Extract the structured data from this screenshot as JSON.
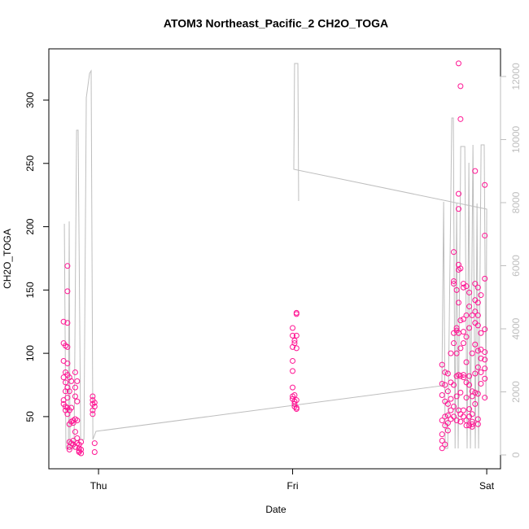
{
  "chart_data": {
    "type": "scatter",
    "title": "ATOM3 Northeast_Pacific_2 CH2O_TOGA",
    "x_label": "Date",
    "y_label": "CH2O_TOGA",
    "xlim": [
      -0.256,
      2.071
    ],
    "xticks": [
      {
        "value": 0,
        "label": "Thu"
      },
      {
        "value": 1,
        "label": "Fri"
      },
      {
        "value": 2,
        "label": "Sat"
      }
    ],
    "ylim": [
      8.8,
      340.5
    ],
    "yticks": [
      50,
      100,
      150,
      200,
      250,
      300
    ],
    "y2lim": [
      -439,
      12877
    ],
    "y2ticks": [
      0,
      2000,
      4000,
      6000,
      8000,
      10000,
      12000
    ],
    "y2_color": "#bebebe",
    "series": [
      {
        "type": "scatter",
        "color": "#ff1493",
        "x": [
          -0.18,
          -0.18,
          -0.18,
          -0.18,
          -0.18,
          -0.18,
          -0.17,
          -0.17,
          -0.17,
          -0.17,
          -0.17,
          -0.17,
          -0.16,
          -0.16,
          -0.16,
          -0.16,
          -0.16,
          -0.16,
          -0.16,
          -0.16,
          -0.16,
          -0.16,
          -0.15,
          -0.15,
          -0.15,
          -0.15,
          -0.15,
          -0.15,
          -0.15,
          -0.14,
          -0.14,
          -0.14,
          -0.14,
          -0.13,
          -0.13,
          -0.13,
          -0.13,
          -0.12,
          -0.12,
          -0.12,
          -0.12,
          -0.12,
          -0.12,
          -0.11,
          -0.11,
          -0.11,
          -0.11,
          -0.11,
          -0.1,
          -0.1,
          -0.1,
          -0.1,
          -0.09,
          -0.09,
          -0.09,
          -0.03,
          -0.03,
          -0.03,
          -0.03,
          -0.03,
          -0.02,
          -0.02,
          -0.02,
          -0.02,
          1.0,
          1.0,
          1.0,
          1.0,
          1.0,
          1.0,
          1.0,
          1.0,
          1.01,
          1.01,
          1.01,
          1.01,
          1.01,
          1.01,
          1.02,
          1.02,
          1.02,
          1.02,
          1.02,
          1.02,
          1.02,
          1.77,
          1.77,
          1.77,
          1.77,
          1.77,
          1.77,
          1.77,
          1.785,
          1.785,
          1.785,
          1.785,
          1.785,
          1.785,
          1.8,
          1.8,
          1.8,
          1.8,
          1.8,
          1.8,
          1.815,
          1.815,
          1.815,
          1.815,
          1.815,
          1.83,
          1.83,
          1.83,
          1.83,
          1.83,
          1.83,
          1.83,
          1.83,
          1.845,
          1.845,
          1.845,
          1.845,
          1.845,
          1.845,
          1.845,
          1.855,
          1.855,
          1.855,
          1.855,
          1.855,
          1.855,
          1.855,
          1.855,
          1.855,
          1.865,
          1.865,
          1.865,
          1.865,
          1.865,
          1.865,
          1.865,
          1.865,
          1.865,
          1.88,
          1.88,
          1.88,
          1.88,
          1.88,
          1.88,
          1.88,
          1.88,
          1.88,
          1.895,
          1.895,
          1.895,
          1.895,
          1.895,
          1.895,
          1.895,
          1.895,
          1.91,
          1.91,
          1.91,
          1.91,
          1.91,
          1.91,
          1.91,
          1.91,
          1.925,
          1.925,
          1.925,
          1.925,
          1.925,
          1.925,
          1.925,
          1.925,
          1.94,
          1.94,
          1.94,
          1.94,
          1.94,
          1.94,
          1.94,
          1.94,
          1.94,
          1.955,
          1.955,
          1.955,
          1.955,
          1.955,
          1.955,
          1.955,
          1.955,
          1.955,
          1.97,
          1.97,
          1.97,
          1.97,
          1.97,
          1.97,
          1.99,
          1.99,
          1.99,
          1.99,
          1.99,
          1.99,
          1.99,
          1.99,
          1.99
        ],
        "values": [
          125,
          108,
          94,
          81,
          63,
          60,
          106,
          85,
          77,
          70,
          58,
          55,
          169,
          149,
          124,
          105,
          92,
          83,
          73,
          65,
          57,
          52,
          81,
          70,
          55,
          44,
          30,
          26,
          24,
          78,
          57,
          46,
          29,
          47,
          45,
          31,
          28,
          85,
          73,
          66,
          48,
          38,
          26,
          78,
          62,
          47,
          33,
          29,
          28,
          25,
          23,
          22,
          30,
          24,
          21,
          66,
          63,
          60,
          55,
          52,
          61,
          58,
          29,
          22,
          120,
          114,
          105,
          94,
          86,
          73,
          66,
          64,
          110,
          108,
          67,
          62,
          60,
          58,
          131,
          132,
          114,
          104,
          57,
          56,
          63,
          91,
          76,
          67,
          47,
          36,
          31,
          25,
          85,
          75,
          62,
          50,
          43,
          28,
          84,
          70,
          60,
          51,
          45,
          39,
          100,
          77,
          64,
          55,
          48,
          180,
          157,
          155,
          116,
          108,
          75,
          58,
          50,
          150,
          120,
          118,
          100,
          82,
          66,
          47,
          329,
          226,
          214,
          170,
          166,
          140,
          116,
          83,
          55,
          311,
          285,
          167,
          126,
          104,
          82,
          69,
          52,
          46,
          155,
          152,
          127,
          117,
          108,
          83,
          81,
          55,
          50,
          153,
          130,
          113,
          93,
          77,
          65,
          47,
          43,
          148,
          137,
          120,
          82,
          75,
          56,
          50,
          43,
          130,
          100,
          70,
          66,
          52,
          46,
          44,
          42,
          244,
          155,
          142,
          133,
          124,
          107,
          84,
          69,
          60,
          152,
          140,
          130,
          122,
          102,
          89,
          68,
          48,
          44,
          146,
          116,
          103,
          96,
          85,
          76,
          233,
          193,
          159,
          119,
          101,
          95,
          88,
          80,
          65
        ]
      },
      {
        "type": "line",
        "axis": "y2",
        "color": "#bebebe",
        "x": [
          -0.176,
          -0.168,
          -0.155,
          -0.151,
          -0.147,
          -0.126,
          -0.113,
          -0.105,
          -0.092,
          -0.075,
          -0.063,
          -0.046,
          -0.038,
          -0.029,
          -0.013,
          1.769,
          1.778,
          1.786,
          1.799,
          1.82,
          1.828,
          1.837,
          1.845,
          1.853,
          1.866,
          1.887,
          1.899,
          1.908,
          1.916,
          1.929,
          1.941,
          1.95,
          1.958,
          1.971,
          1.987,
          1.996,
          2.0,
          1.006,
          1.01,
          1.027,
          1.031
        ],
        "values": [
          7329,
          206,
          206,
          7406,
          206,
          206,
          10297,
          10297,
          490,
          490,
          11329,
          12103,
          12181,
          490,
          748,
          2194,
          8026,
          206,
          206,
          10684,
          10684,
          206,
          7974,
          206,
          9781,
          9781,
          206,
          9265,
          206,
          9832,
          206,
          7974,
          206,
          9832,
          9832,
          1781,
          7794,
          9058,
          12413,
          12413,
          8052
        ]
      }
    ]
  }
}
